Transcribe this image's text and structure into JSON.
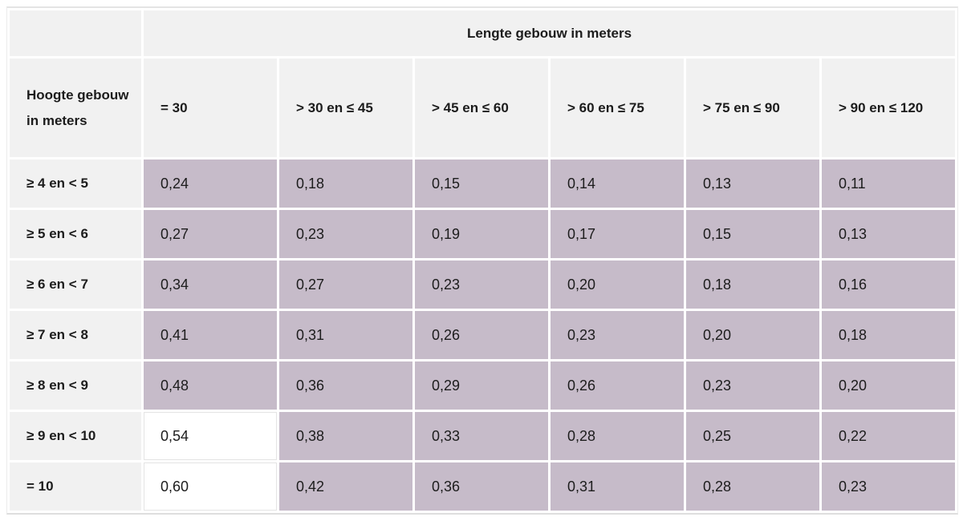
{
  "table": {
    "top_header": "Lengte gebouw in meters",
    "corner_label": "",
    "row_header_title": "Hoogte gebouw in meters",
    "column_headers": [
      "= 30",
      "> 30 en ≤ 45",
      "> 45 en ≤ 60",
      "> 60 en ≤ 75",
      "> 75 en ≤ 90",
      "> 90 en ≤ 120"
    ],
    "rows": [
      {
        "label": "≥ 4 en < 5",
        "values": [
          "0,24",
          "0,18",
          "0,15",
          "0,14",
          "0,13",
          "0,11"
        ],
        "white_cells": []
      },
      {
        "label": "≥ 5 en < 6",
        "values": [
          "0,27",
          "0,23",
          "0,19",
          "0,17",
          "0,15",
          "0,13"
        ],
        "white_cells": []
      },
      {
        "label": "≥ 6 en < 7",
        "values": [
          "0,34",
          "0,27",
          "0,23",
          "0,20",
          "0,18",
          "0,16"
        ],
        "white_cells": []
      },
      {
        "label": "≥ 7 en < 8",
        "values": [
          "0,41",
          "0,31",
          "0,26",
          "0,23",
          "0,20",
          "0,18"
        ],
        "white_cells": []
      },
      {
        "label": "≥ 8 en < 9",
        "values": [
          "0,48",
          "0,36",
          "0,29",
          "0,26",
          "0,23",
          "0,20"
        ],
        "white_cells": []
      },
      {
        "label": "≥ 9 en < 10",
        "values": [
          "0,54",
          "0,38",
          "0,33",
          "0,28",
          "0,25",
          "0,22"
        ],
        "white_cells": [
          0
        ]
      },
      {
        "label": "= 10",
        "values": [
          "0,60",
          "0,42",
          "0,36",
          "0,31",
          "0,28",
          "0,23"
        ],
        "white_cells": [
          0
        ]
      }
    ]
  },
  "colors": {
    "cell_purple": "#c6bbc9",
    "header_gray": "#f1f1f1",
    "cell_white": "#ffffff",
    "text": "#1c1c1c",
    "border": "#e4e4e4"
  },
  "chart_data": {
    "type": "table",
    "title": "Lengte gebouw in meters",
    "row_dimension": "Hoogte gebouw in meters",
    "columns": [
      "= 30",
      "> 30 en ≤ 45",
      "> 45 en ≤ 60",
      "> 60 en ≤ 75",
      "> 75 en ≤ 90",
      "> 90 en ≤ 120"
    ],
    "rows": [
      {
        "label": "≥ 4 en < 5",
        "values": [
          0.24,
          0.18,
          0.15,
          0.14,
          0.13,
          0.11
        ]
      },
      {
        "label": "≥ 5 en < 6",
        "values": [
          0.27,
          0.23,
          0.19,
          0.17,
          0.15,
          0.13
        ]
      },
      {
        "label": "≥ 6 en < 7",
        "values": [
          0.34,
          0.27,
          0.23,
          0.2,
          0.18,
          0.16
        ]
      },
      {
        "label": "≥ 7 en < 8",
        "values": [
          0.41,
          0.31,
          0.26,
          0.23,
          0.2,
          0.18
        ]
      },
      {
        "label": "≥ 8 en < 9",
        "values": [
          0.48,
          0.36,
          0.29,
          0.26,
          0.23,
          0.2
        ]
      },
      {
        "label": "≥ 9 en < 10",
        "values": [
          0.54,
          0.38,
          0.33,
          0.28,
          0.25,
          0.22
        ]
      },
      {
        "label": "= 10",
        "values": [
          0.6,
          0.42,
          0.36,
          0.31,
          0.28,
          0.23
        ]
      }
    ],
    "highlighted_white_cells": [
      {
        "row": "≥ 9 en < 10",
        "column": "= 30"
      },
      {
        "row": "= 10",
        "column": "= 30"
      }
    ]
  }
}
